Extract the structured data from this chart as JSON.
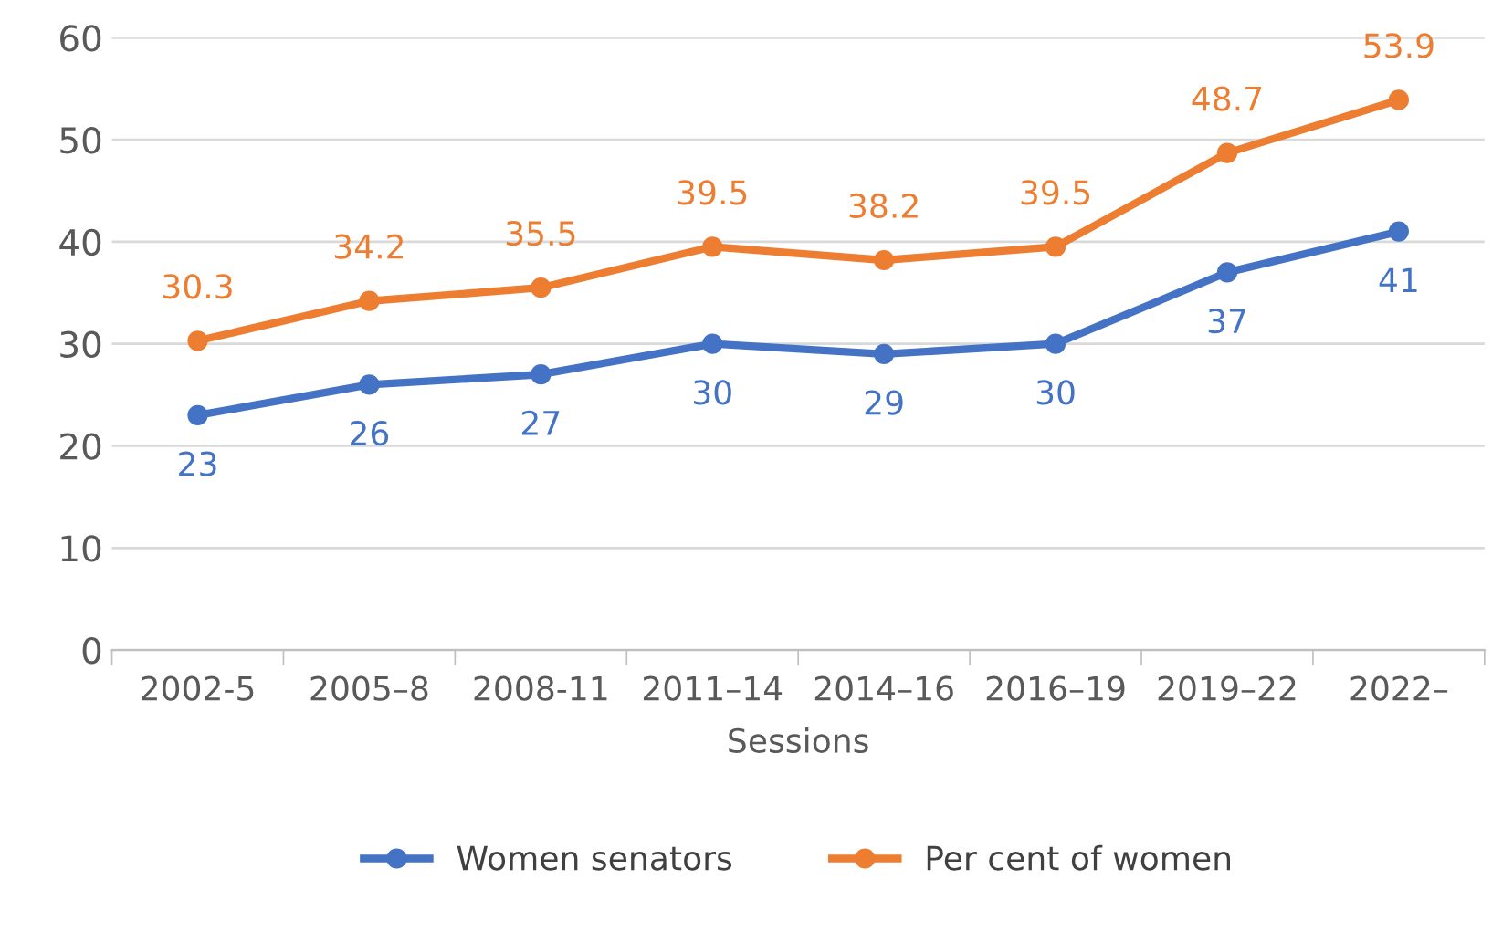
{
  "chart_data": {
    "type": "line",
    "xlabel": "Sessions",
    "categories": [
      "2002-5",
      "2005–8",
      "2008-11",
      "2011–14",
      "2014–16",
      "2016–19",
      "2019–22",
      "2022–"
    ],
    "series": [
      {
        "name": "Women senators",
        "color": "#4472c4",
        "values": [
          23,
          26,
          27,
          30,
          29,
          30,
          37,
          41
        ]
      },
      {
        "name": "Per cent of women",
        "color": "#ed7d31",
        "values": [
          30.3,
          34.2,
          35.5,
          39.5,
          38.2,
          39.5,
          48.7,
          53.9
        ]
      }
    ],
    "ylim": [
      0,
      60
    ],
    "yticks": [
      0,
      10,
      20,
      30,
      40,
      50,
      60
    ],
    "grid": "y",
    "legend": "bottom",
    "marker": "circle",
    "line_style": "solid",
    "data_labels": true
  }
}
